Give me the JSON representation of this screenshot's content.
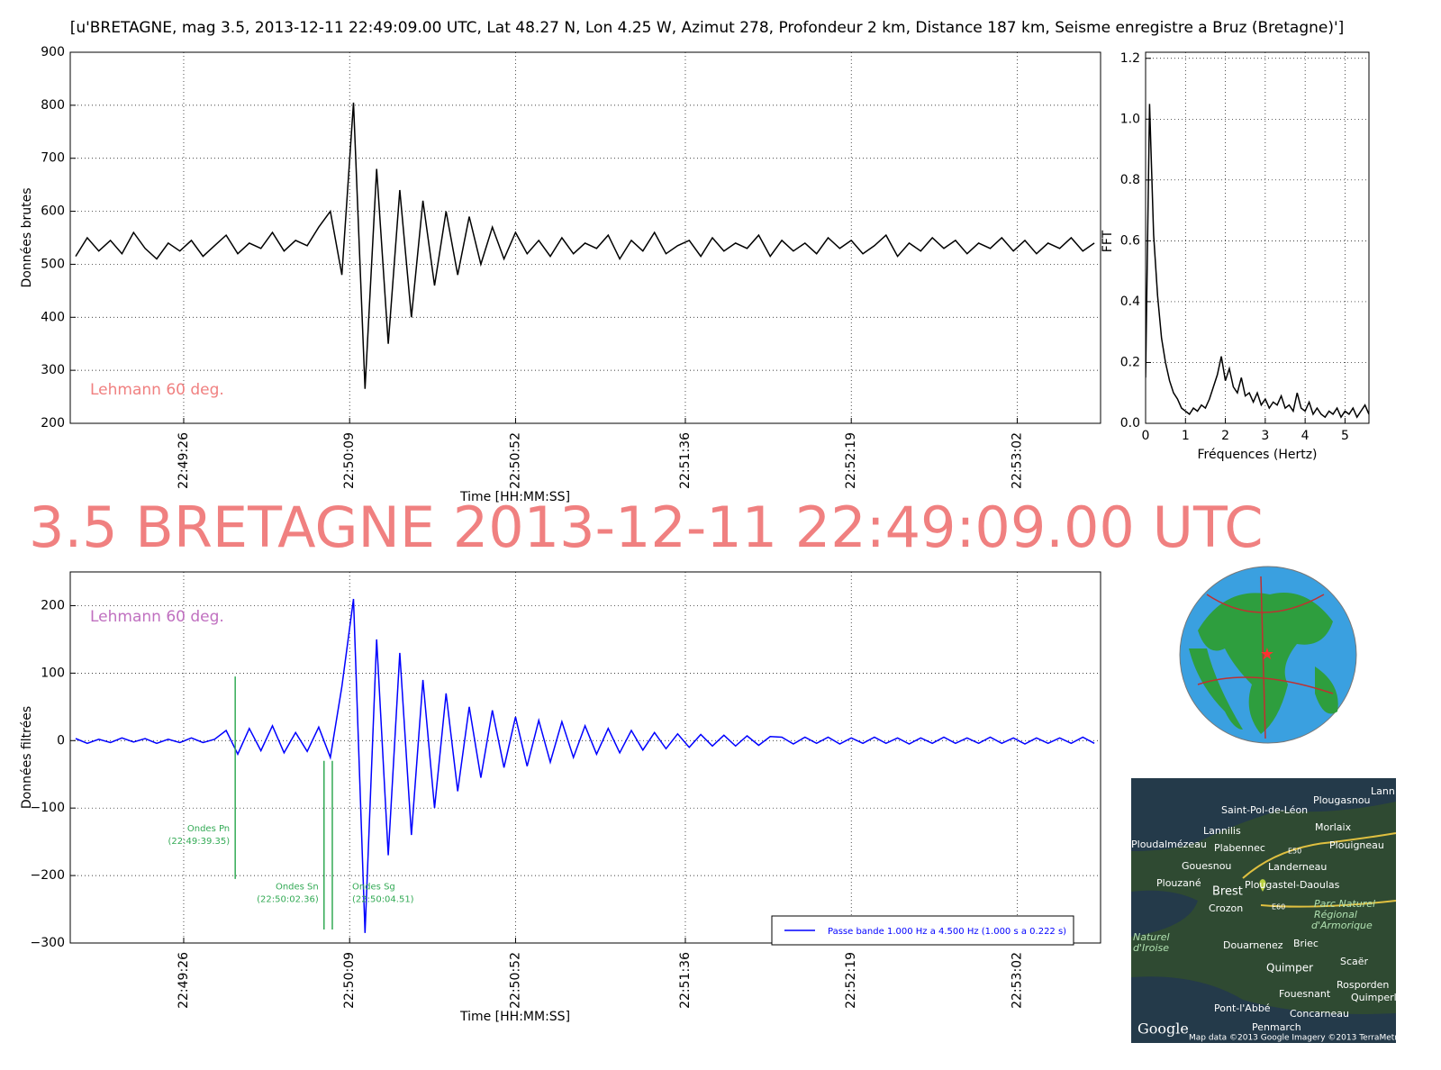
{
  "title": "[u'BRETAGNE, mag 3.5, 2013-12-11 22:49:09.00 UTC, Lat 48.27 N, Lon 4.25 W, Azimut 278, Profondeur 2 km, Distance 187 km, Seisme enregistre a Bruz (Bretagne)']",
  "heading": "3.5 BRETAGNE 2013-12-11 22:49:09.00 UTC",
  "map_labels": [
    "Lann",
    "Plougasnou",
    "Saint-Pol-de-Léon",
    "Lannilis",
    "Morlaix",
    "Ploudalmézeau",
    "Plabennec",
    "E50",
    "Plouigneau",
    "Gouesnou",
    "Landerneau",
    "Plouzané",
    "Brest",
    "Plougastel-Daoulas",
    "Crozon",
    "E60",
    "Parc Naturel",
    "Régional",
    "d'Armorique",
    "Naturel",
    "d'Iroise",
    "Douarnenez",
    "Briec",
    "Scaër",
    "Quimper",
    "Rosporden",
    "Fouesnant",
    "Quimperlé",
    "Pont-l'Abbé",
    "Concarneau",
    "Penmarch",
    "Google",
    "Map data ©2013 Google  Imagery ©2013 TerraMetrics"
  ],
  "chart_data": [
    {
      "type": "line",
      "ylabel": "Données brutes",
      "xlabel": "Time [HH:MM:SS]",
      "annotation": "Lehmann 60 deg.",
      "annotation_color": "#f08080",
      "x": [
        82138,
        82141,
        82144,
        82147,
        82150,
        82153,
        82156,
        82159,
        82162,
        82165,
        82168,
        82171,
        82174,
        82177,
        82180,
        82183,
        82186,
        82189,
        82192,
        82195,
        82198,
        82201,
        82204,
        82207,
        82210,
        82213,
        82216,
        82219,
        82222,
        82225,
        82228,
        82231,
        82234,
        82237,
        82240,
        82243,
        82246,
        82249,
        82252,
        82255,
        82258,
        82261,
        82264,
        82267,
        82270,
        82273,
        82276,
        82279,
        82282,
        82285,
        82288,
        82291,
        82294,
        82297,
        82300,
        82303,
        82306,
        82309,
        82312,
        82315,
        82318,
        82321,
        82324,
        82327,
        82330,
        82333,
        82336,
        82339,
        82342,
        82345,
        82348,
        82351,
        82354,
        82357,
        82360,
        82363,
        82366,
        82369,
        82372,
        82375,
        82378,
        82381,
        82384,
        82387,
        82390,
        82393,
        82396,
        82399,
        82402
      ],
      "series": [
        {
          "color": "#000000",
          "values": [
            515,
            550,
            525,
            545,
            520,
            560,
            530,
            510,
            540,
            525,
            545,
            515,
            535,
            555,
            520,
            540,
            530,
            560,
            525,
            545,
            535,
            570,
            600,
            480,
            805,
            265,
            680,
            350,
            640,
            400,
            620,
            460,
            600,
            480,
            590,
            500,
            570,
            510,
            560,
            520,
            545,
            515,
            550,
            520,
            540,
            530,
            555,
            510,
            545,
            525,
            560,
            520,
            535,
            545,
            515,
            550,
            525,
            540,
            530,
            555,
            515,
            545,
            525,
            540,
            520,
            550,
            530,
            545,
            520,
            535,
            555,
            515,
            540,
            525,
            550,
            530,
            545,
            520,
            540,
            530,
            550,
            525,
            545,
            520,
            540,
            530,
            550,
            525,
            540
          ]
        }
      ],
      "xlim": [
        82136.6,
        82403.6
      ],
      "ylim": [
        200,
        900
      ],
      "xticks": [
        {
          "value": 82166,
          "label": "22:49:26"
        },
        {
          "value": 82209,
          "label": "22:50:09"
        },
        {
          "value": 82252,
          "label": "22:50:52"
        },
        {
          "value": 82296,
          "label": "22:51:36"
        },
        {
          "value": 82339,
          "label": "22:52:19"
        },
        {
          "value": 82382,
          "label": "22:53:02"
        }
      ],
      "yticks": [
        200,
        300,
        400,
        500,
        600,
        700,
        800,
        900
      ],
      "grid": true
    },
    {
      "type": "line",
      "ylabel": "FFT",
      "xlabel": "Fréquences (Hertz)",
      "x": [
        0,
        0.1,
        0.2,
        0.3,
        0.4,
        0.5,
        0.6,
        0.7,
        0.8,
        0.9,
        1.0,
        1.1,
        1.2,
        1.3,
        1.4,
        1.5,
        1.6,
        1.7,
        1.8,
        1.9,
        2.0,
        2.1,
        2.2,
        2.3,
        2.4,
        2.5,
        2.6,
        2.7,
        2.8,
        2.9,
        3.0,
        3.1,
        3.2,
        3.3,
        3.4,
        3.5,
        3.6,
        3.7,
        3.8,
        3.9,
        4.0,
        4.1,
        4.2,
        4.3,
        4.4,
        4.5,
        4.6,
        4.7,
        4.8,
        4.9,
        5.0,
        5.1,
        5.2,
        5.3,
        5.4,
        5.5,
        5.6
      ],
      "series": [
        {
          "color": "#000000",
          "values": [
            0.15,
            1.05,
            0.62,
            0.42,
            0.28,
            0.2,
            0.14,
            0.1,
            0.08,
            0.05,
            0.04,
            0.03,
            0.05,
            0.04,
            0.06,
            0.05,
            0.08,
            0.12,
            0.16,
            0.22,
            0.14,
            0.18,
            0.12,
            0.1,
            0.15,
            0.09,
            0.1,
            0.07,
            0.1,
            0.06,
            0.08,
            0.05,
            0.07,
            0.06,
            0.09,
            0.05,
            0.06,
            0.04,
            0.1,
            0.05,
            0.04,
            0.07,
            0.03,
            0.05,
            0.03,
            0.02,
            0.04,
            0.03,
            0.05,
            0.02,
            0.04,
            0.03,
            0.05,
            0.02,
            0.04,
            0.06,
            0.03
          ]
        }
      ],
      "xlim": [
        0,
        5.6
      ],
      "ylim": [
        0,
        1.22
      ],
      "xticks": [
        0,
        1,
        2,
        3,
        4,
        5
      ],
      "yticks": [
        {
          "value": 0,
          "label": "0.0"
        },
        0.2,
        0.4,
        0.6,
        0.8,
        {
          "value": 1,
          "label": "1.0"
        },
        1.2
      ],
      "grid": true
    },
    {
      "type": "line",
      "ylabel": "Données filtrées",
      "xlabel": "Time [HH:MM:SS]",
      "annotation": "Lehmann 60 deg.",
      "annotation_color": "#c070c0",
      "x": [
        82138,
        82141,
        82144,
        82147,
        82150,
        82153,
        82156,
        82159,
        82162,
        82165,
        82168,
        82171,
        82174,
        82177,
        82180,
        82183,
        82186,
        82189,
        82192,
        82195,
        82198,
        82201,
        82204,
        82207,
        82210,
        82213,
        82216,
        82219,
        82222,
        82225,
        82228,
        82231,
        82234,
        82237,
        82240,
        82243,
        82246,
        82249,
        82252,
        82255,
        82258,
        82261,
        82264,
        82267,
        82270,
        82273,
        82276,
        82279,
        82282,
        82285,
        82288,
        82291,
        82294,
        82297,
        82300,
        82303,
        82306,
        82309,
        82312,
        82315,
        82318,
        82321,
        82324,
        82327,
        82330,
        82333,
        82336,
        82339,
        82342,
        82345,
        82348,
        82351,
        82354,
        82357,
        82360,
        82363,
        82366,
        82369,
        82372,
        82375,
        82378,
        82381,
        82384,
        82387,
        82390,
        82393,
        82396,
        82399,
        82402
      ],
      "series": [
        {
          "name": "Passe bande 1.000 Hz a 4.500 Hz (1.000 s a 0.222 s)",
          "color": "#0000ff",
          "values": [
            3,
            -4,
            2,
            -3,
            4,
            -2,
            3,
            -4,
            2,
            -3,
            4,
            -3,
            2,
            15,
            -20,
            18,
            -15,
            22,
            -18,
            12,
            -16,
            20,
            -25,
            80,
            210,
            -285,
            150,
            -170,
            130,
            -140,
            90,
            -100,
            70,
            -75,
            50,
            -55,
            45,
            -40,
            35,
            -38,
            30,
            -32,
            28,
            -25,
            22,
            -20,
            18,
            -18,
            15,
            -14,
            12,
            -12,
            10,
            -10,
            9,
            -8,
            8,
            -8,
            7,
            -7,
            6,
            5,
            -5,
            5,
            -4,
            5,
            -5,
            4,
            -4,
            5,
            -4,
            4,
            -5,
            4,
            -4,
            5,
            -4,
            4,
            -4,
            5,
            -4,
            4,
            -5,
            4,
            -4,
            4,
            -4,
            5,
            -4
          ]
        }
      ],
      "picks": [
        {
          "name": "Ondes Pn",
          "time": "(22:49:39.35)",
          "x": 82179.35,
          "y": [
            95,
            -205
          ],
          "color": "#33aa55"
        },
        {
          "name": "Ondes Sn",
          "time": "(22:50:02.36)",
          "x": 82202.36,
          "y": [
            -30,
            -280
          ],
          "color": "#33aa55"
        },
        {
          "name": "Ondes Sg",
          "time": "(22:50:04.51)",
          "x": 82204.51,
          "y": [
            -30,
            -280
          ],
          "color": "#33aa55"
        }
      ],
      "xlim": [
        82136.6,
        82403.6
      ],
      "ylim": [
        -300,
        250
      ],
      "xticks": [
        {
          "value": 82166,
          "label": "22:49:26"
        },
        {
          "value": 82209,
          "label": "22:50:09"
        },
        {
          "value": 82252,
          "label": "22:50:52"
        },
        {
          "value": 82296,
          "label": "22:51:36"
        },
        {
          "value": 82339,
          "label": "22:52:19"
        },
        {
          "value": 82382,
          "label": "22:53:02"
        }
      ],
      "yticks": [
        {
          "value": -300,
          "label": "−300"
        },
        {
          "value": -200,
          "label": "−200"
        },
        {
          "value": -100,
          "label": "−100"
        },
        0,
        100,
        200
      ],
      "grid": true,
      "legend": "lower right"
    }
  ]
}
